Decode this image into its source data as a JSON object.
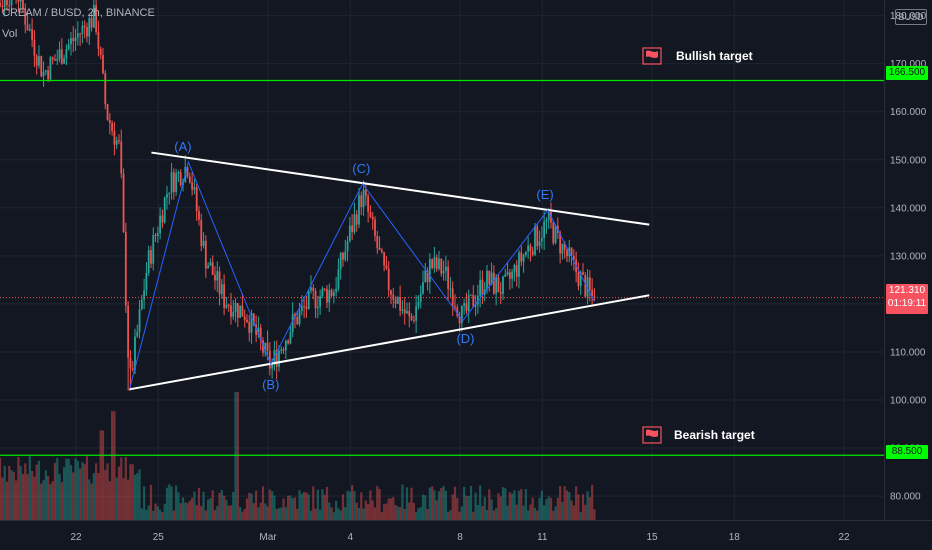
{
  "header": {
    "symbol_line": "CREAM / BUSD, 2h, BINANCE",
    "indicator": "Vol"
  },
  "scale_badge": "BUSD",
  "levels": {
    "bullish": {
      "price": "166.500",
      "label": "Bullish target",
      "color": "#00ff00"
    },
    "bearish": {
      "price": "88.500",
      "label": "Bearish target",
      "color": "#00ff00"
    },
    "current": {
      "price": "121.310",
      "countdown": "01:19:11",
      "color": "#f7525f"
    }
  },
  "colors": {
    "background": "#131722",
    "up": "#26a69a",
    "down": "#ef5350",
    "wave": "#2962ff",
    "triangle": "#ffffff",
    "flag": "#f7525f"
  },
  "chart_data": {
    "type": "candlestick",
    "y_axis": {
      "ticks": [
        "180.000",
        "170.000",
        "160.000",
        "150.000",
        "140.000",
        "130.000",
        "120.000",
        "110.000",
        "100.000",
        "90.000",
        "80.000"
      ],
      "range": [
        73.5,
        182
      ]
    },
    "x_axis": {
      "ticks": [
        "22",
        "25",
        "Mar",
        "4",
        "8",
        "11",
        "15",
        "18",
        "22"
      ],
      "tick_values": [
        0,
        3,
        7,
        10,
        14,
        17,
        21,
        24,
        28
      ]
    },
    "price_range_observed": {
      "low": 102,
      "high": 185
    },
    "last_close": 121.31,
    "triangle": {
      "upper": [
        [
          2.75,
          151.5
        ],
        [
          20.9,
          136.5
        ]
      ],
      "lower": [
        [
          1.93,
          102.2
        ],
        [
          20.9,
          121.8
        ]
      ]
    },
    "waves": [
      {
        "label": "(A)",
        "x": 3.9,
        "price": 149.5
      },
      {
        "label": "(B)",
        "x": 7.1,
        "price": 106.5
      },
      {
        "label": "(C)",
        "x": 10.4,
        "price": 145
      },
      {
        "label": "(D)",
        "x": 14.2,
        "price": 116
      },
      {
        "label": "(E)",
        "x": 17.1,
        "price": 139.5
      }
    ],
    "wave_path": [
      [
        1.95,
        102.2
      ],
      [
        4.1,
        149.5
      ],
      [
        7.1,
        107.5
      ],
      [
        10.45,
        145
      ],
      [
        14.1,
        116.5
      ],
      [
        17.2,
        139.5
      ],
      [
        18.9,
        120.5
      ]
    ]
  }
}
